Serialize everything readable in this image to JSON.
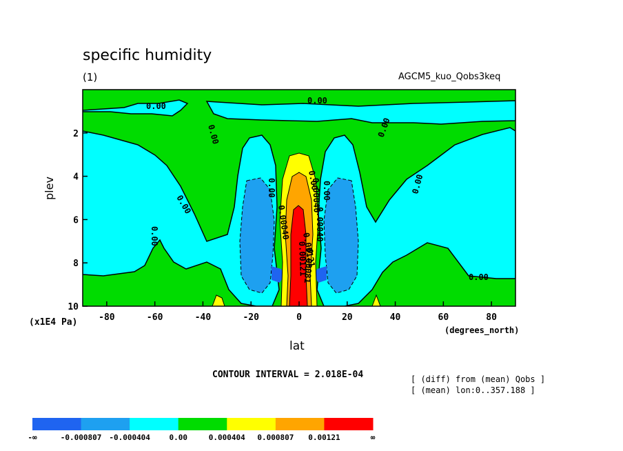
{
  "header": {
    "title": "specific humidity",
    "panel_label": "(1)",
    "experiment": "AGCM5_kuo_Qobs3keq"
  },
  "footer": {
    "contour_interval": "CONTOUR INTERVAL = 2.018E-04",
    "note_diff": "[ (diff) from (mean) Qobs ]",
    "note_mean": "[ (mean) lon:0..357.188 ]"
  },
  "chart_data": {
    "type": "contour",
    "title": "specific humidity",
    "xlabel": "lat",
    "x_unit": "(degrees_north)",
    "ylabel": "plev",
    "y_unit": "(x1E4 Pa)",
    "xlim": [
      -90,
      90
    ],
    "ylim": [
      10,
      0
    ],
    "x_ticks": [
      "-80",
      "-60",
      "-40",
      "-20",
      "0",
      "20",
      "40",
      "60",
      "80"
    ],
    "y_ticks": [
      "2",
      "4",
      "6",
      "8",
      "10"
    ],
    "contour_interval": 0.0002018,
    "levels": [
      -0.000807,
      -0.000404,
      0.0,
      0.000404,
      0.000807,
      0.00121
    ],
    "colorbar": {
      "labels": [
        "-∞",
        "-0.000807",
        "-0.000404",
        "0.00",
        "0.000404",
        "0.000807",
        "0.00121",
        "∞"
      ],
      "colors": [
        "#1f64f0",
        "#1ea0f0",
        "#00ffff",
        "#00dc00",
        "#ffff00",
        "#ffa500",
        "#ff0000"
      ]
    },
    "contour_labels": [
      "0.00",
      "0.00",
      "0.00",
      "0.00",
      "0.00",
      "0.00",
      "0.00",
      "0.00",
      "0.00",
      "0.00",
      "0.00",
      "0.00040",
      "0.00040",
      "0.00040",
      "0.00121",
      "0.00121",
      "0.00081"
    ],
    "features": [
      {
        "type": "max",
        "lat": 0,
        "plev": 7.5,
        "band": "> 0.00121"
      },
      {
        "type": "min",
        "lat": -12,
        "plev": 6.5,
        "band": "-0.000807 to -0.000404"
      },
      {
        "type": "min",
        "lat": 12,
        "plev": 6.5,
        "band": "-0.000807 to -0.000404"
      },
      {
        "type": "min",
        "lat": -8,
        "plev": 8.5,
        "band": "< -0.000807"
      },
      {
        "type": "min",
        "lat": 8,
        "plev": 8.5,
        "band": "< -0.000807"
      }
    ]
  }
}
